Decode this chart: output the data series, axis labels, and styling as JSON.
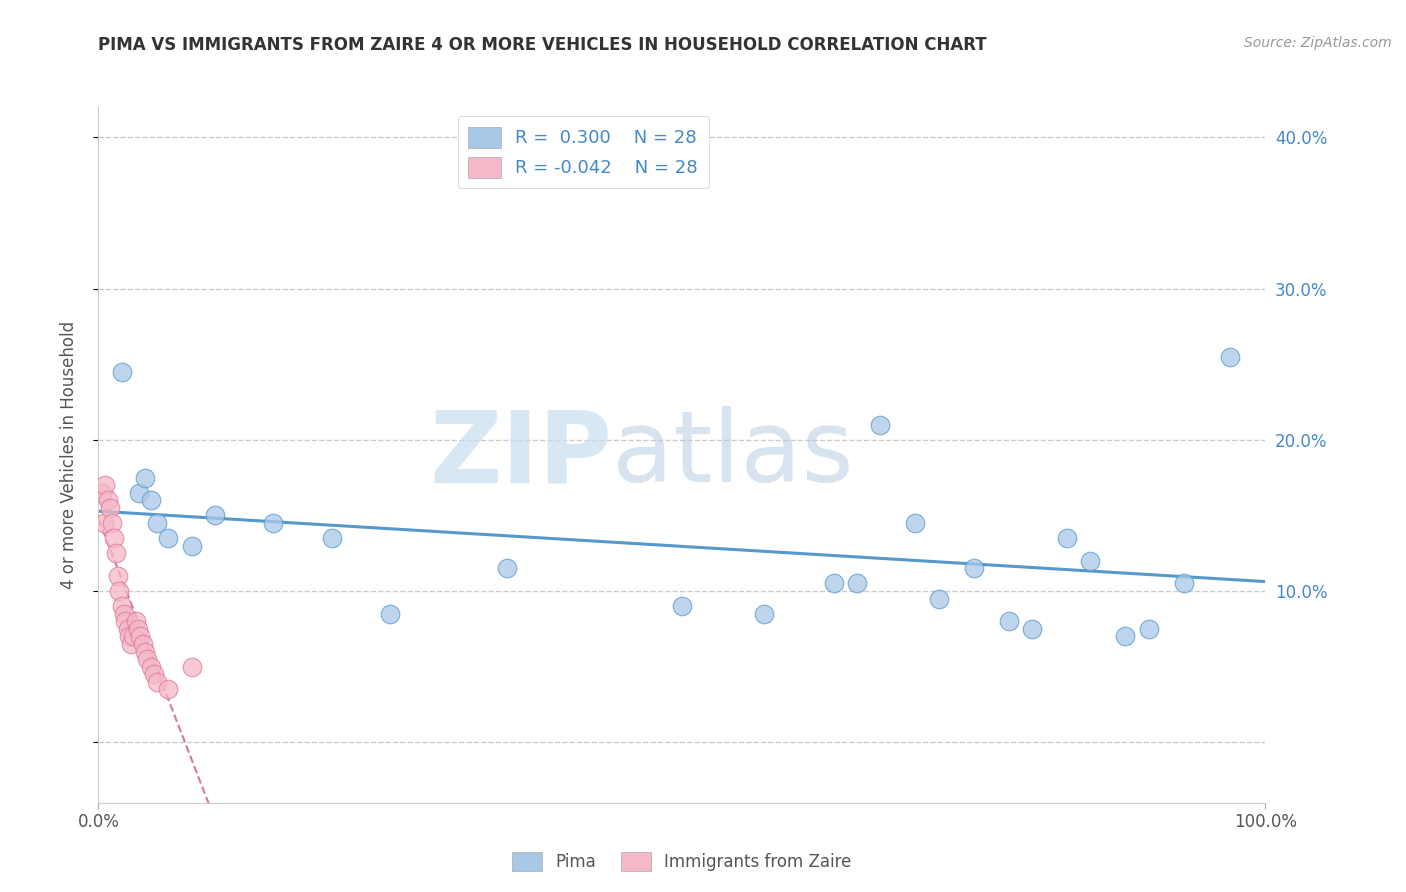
{
  "title": "PIMA VS IMMIGRANTS FROM ZAIRE 4 OR MORE VEHICLES IN HOUSEHOLD CORRELATION CHART",
  "source": "Source: ZipAtlas.com",
  "ylabel": "4 or more Vehicles in Household",
  "legend_labels": [
    "Pima",
    "Immigrants from Zaire"
  ],
  "r_pima": 0.3,
  "r_zaire": -0.042,
  "n_pima": 28,
  "n_zaire": 28,
  "xlim": [
    0,
    100
  ],
  "ylim": [
    -4,
    42
  ],
  "yticks": [
    0,
    10,
    20,
    30,
    40
  ],
  "ytick_labels": [
    "",
    "10.0%",
    "20.0%",
    "30.0%",
    "40.0%"
  ],
  "pima_color": "#a8c8e8",
  "pima_line_color": "#5599cc",
  "zaire_color": "#f4b8c8",
  "zaire_line_color": "#dd7799",
  "background_color": "#ffffff",
  "grid_color": "#cccccc",
  "watermark_zip": "ZIP",
  "watermark_atlas": "atlas",
  "pima_points": [
    [
      2.0,
      24.5
    ],
    [
      3.5,
      16.5
    ],
    [
      4.0,
      17.5
    ],
    [
      4.5,
      16.0
    ],
    [
      5.0,
      14.5
    ],
    [
      6.0,
      13.5
    ],
    [
      8.0,
      13.0
    ],
    [
      10.0,
      15.0
    ],
    [
      15.0,
      14.5
    ],
    [
      20.0,
      13.5
    ],
    [
      25.0,
      8.5
    ],
    [
      35.0,
      11.5
    ],
    [
      50.0,
      9.0
    ],
    [
      57.0,
      8.5
    ],
    [
      63.0,
      10.5
    ],
    [
      65.0,
      10.5
    ],
    [
      67.0,
      21.0
    ],
    [
      70.0,
      14.5
    ],
    [
      72.0,
      9.5
    ],
    [
      75.0,
      11.5
    ],
    [
      78.0,
      8.0
    ],
    [
      80.0,
      7.5
    ],
    [
      83.0,
      13.5
    ],
    [
      85.0,
      12.0
    ],
    [
      88.0,
      7.0
    ],
    [
      90.0,
      7.5
    ],
    [
      93.0,
      10.5
    ],
    [
      97.0,
      25.5
    ]
  ],
  "zaire_points": [
    [
      0.3,
      16.5
    ],
    [
      0.5,
      14.5
    ],
    [
      0.6,
      17.0
    ],
    [
      0.8,
      16.0
    ],
    [
      1.0,
      15.5
    ],
    [
      1.2,
      14.5
    ],
    [
      1.3,
      13.5
    ],
    [
      1.5,
      12.5
    ],
    [
      1.7,
      11.0
    ],
    [
      1.8,
      10.0
    ],
    [
      2.0,
      9.0
    ],
    [
      2.2,
      8.5
    ],
    [
      2.3,
      8.0
    ],
    [
      2.5,
      7.5
    ],
    [
      2.6,
      7.0
    ],
    [
      2.8,
      6.5
    ],
    [
      3.0,
      7.0
    ],
    [
      3.2,
      8.0
    ],
    [
      3.4,
      7.5
    ],
    [
      3.6,
      7.0
    ],
    [
      3.8,
      6.5
    ],
    [
      4.0,
      6.0
    ],
    [
      4.2,
      5.5
    ],
    [
      4.5,
      5.0
    ],
    [
      4.8,
      4.5
    ],
    [
      5.0,
      4.0
    ],
    [
      6.0,
      3.5
    ],
    [
      8.0,
      5.0
    ]
  ],
  "pima_trend": [
    0,
    100,
    13.0,
    18.0
  ],
  "zaire_trend": [
    0,
    65,
    7.5,
    4.0
  ]
}
